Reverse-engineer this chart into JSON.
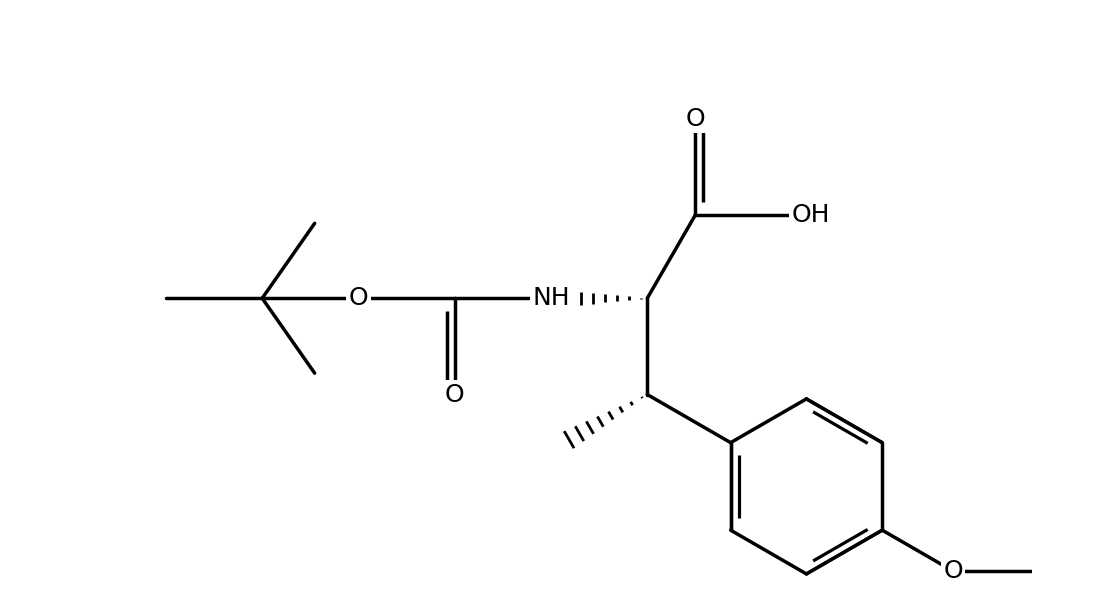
{
  "bg_color": "#ffffff",
  "line_color": "#000000",
  "line_width": 2.5,
  "font_size": 18,
  "figsize": [
    11.02,
    6.14
  ],
  "dpi": 100,
  "xlim": [
    0.0,
    11.0
  ],
  "ylim": [
    0.5,
    7.5
  ]
}
